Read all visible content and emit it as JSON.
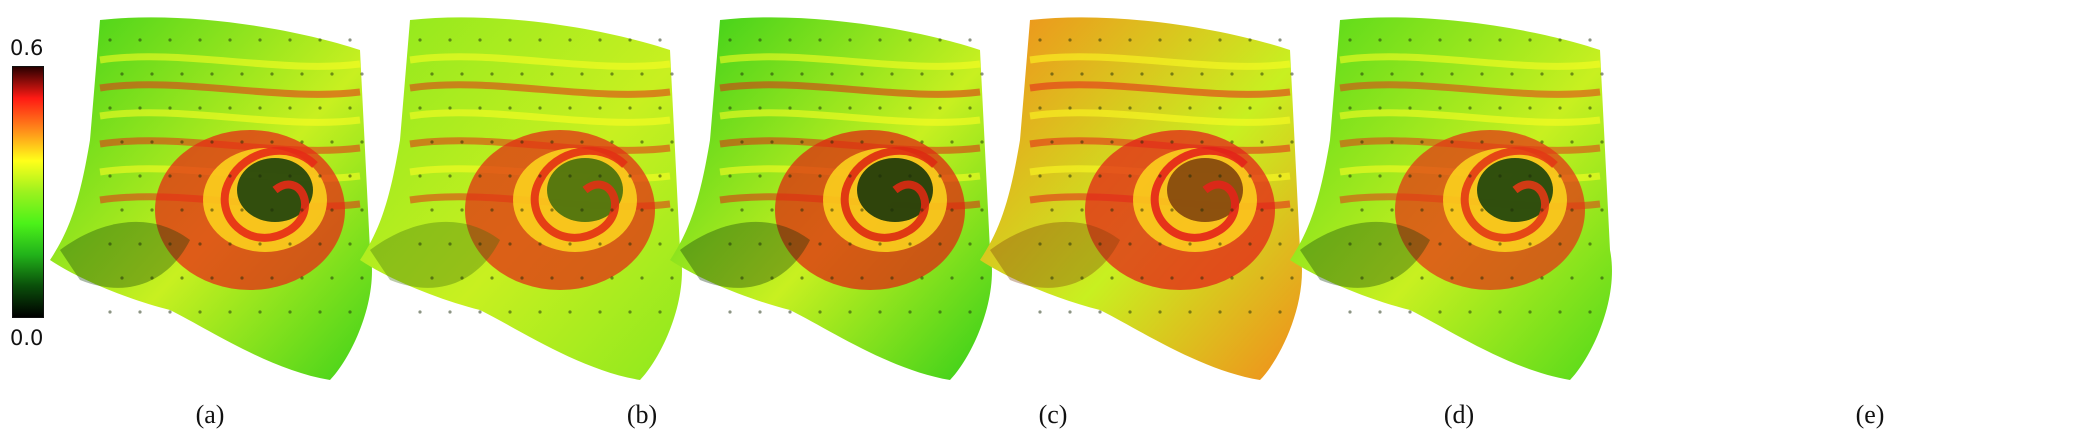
{
  "colorbar": {
    "max_label": "0.6",
    "min_label": "0.0",
    "stops": [
      "#000000",
      "#0a4f0a",
      "#22b31a",
      "#4cf219",
      "#9cf21e",
      "#ffff1a",
      "#ff8a1a",
      "#ff1a14",
      "#2a0000"
    ]
  },
  "panels": [
    {
      "caption": "(a)",
      "base": "#3fd21a",
      "accent": "#e52b16",
      "shade": "#0f3a0a"
    },
    {
      "caption": "(b)",
      "base": "#8ee81e",
      "accent": "#e23014",
      "shade": "#3c6a0c"
    },
    {
      "caption": "(c)",
      "base": "#34cf1a",
      "accent": "#dd2a12",
      "shade": "#0c2e08"
    },
    {
      "caption": "(d)",
      "base": "#f28c1c",
      "accent": "#e3241a",
      "shade": "#7a3d0c"
    },
    {
      "caption": "(e)",
      "base": "#52d91a",
      "accent": "#e23815",
      "shade": "#0d3a0a"
    }
  ]
}
